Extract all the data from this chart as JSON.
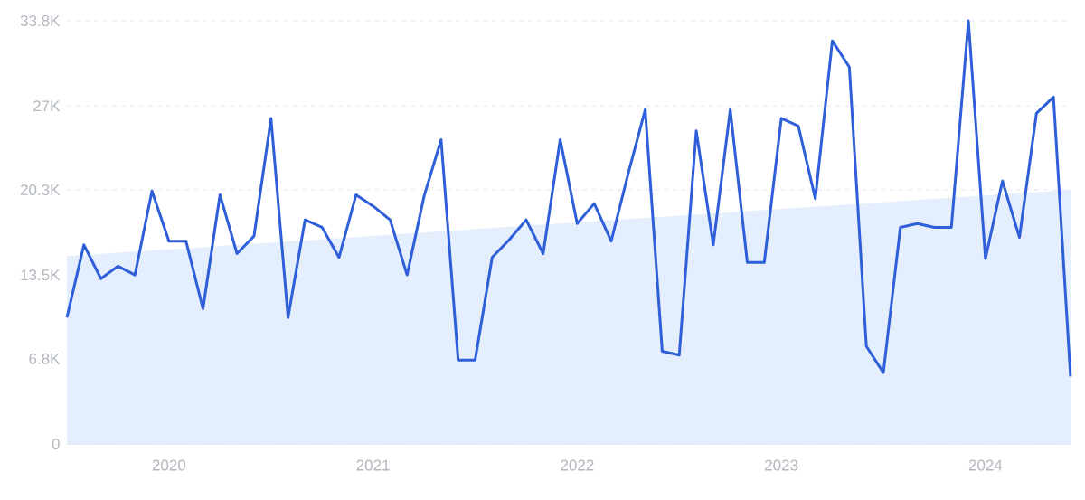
{
  "chart_data": {
    "type": "line",
    "x": [
      "2019-07",
      "2019-08",
      "2019-09",
      "2019-10",
      "2019-11",
      "2019-12",
      "2020-01",
      "2020-02",
      "2020-03",
      "2020-04",
      "2020-05",
      "2020-06",
      "2020-07",
      "2020-08",
      "2020-09",
      "2020-10",
      "2020-11",
      "2020-12",
      "2021-01",
      "2021-02",
      "2021-03",
      "2021-04",
      "2021-05",
      "2021-06",
      "2021-07",
      "2021-08",
      "2021-09",
      "2021-10",
      "2021-11",
      "2021-12",
      "2022-01",
      "2022-02",
      "2022-03",
      "2022-04",
      "2022-05",
      "2022-06",
      "2022-07",
      "2022-08",
      "2022-09",
      "2022-10",
      "2022-11",
      "2022-12",
      "2023-01",
      "2023-02",
      "2023-03",
      "2023-04",
      "2023-05",
      "2023-06",
      "2023-07",
      "2023-08",
      "2023-09",
      "2023-10",
      "2023-11",
      "2023-12",
      "2024-01",
      "2024-02",
      "2024-03",
      "2024-04",
      "2024-05",
      "2024-06"
    ],
    "series": [
      {
        "type": "area",
        "color": "#e4eefc",
        "x": [
          "2019-07",
          "2024-06"
        ],
        "values": [
          15000,
          20300
        ]
      },
      {
        "color": "#2f5fd8",
        "values": [
          10100,
          15900,
          13200,
          14200,
          13500,
          20200,
          16200,
          16200,
          10800,
          19900,
          15200,
          16600,
          26000,
          10100,
          17900,
          17300,
          14900,
          19900,
          19000,
          17900,
          13500,
          19800,
          24300,
          6700,
          6700,
          14900,
          16300,
          17900,
          15200,
          24300,
          17600,
          19200,
          16200,
          21600,
          26700,
          7400,
          7100,
          25000,
          15900,
          26700,
          14500,
          14500,
          26000,
          25400,
          19600,
          32200,
          30100,
          7800,
          5700,
          17300,
          17600,
          17300,
          17300,
          33800,
          14800,
          21000,
          16500,
          26400,
          27700,
          5400
        ]
      }
    ],
    "xlim": [
      "2019-07",
      "2024-06"
    ],
    "xticks": [
      "2020",
      "2021",
      "2022",
      "2023",
      "2024"
    ],
    "ylim": [
      0,
      33800
    ],
    "yticks": [
      0,
      {
        "value": 6800,
        "label": "6.8K"
      },
      {
        "value": 13500,
        "label": "13.5K"
      },
      {
        "value": 20300,
        "label": "20.3K"
      },
      {
        "value": 27000,
        "label": "27K"
      },
      {
        "value": 33800,
        "label": "33.8K"
      }
    ],
    "grid": "y"
  }
}
